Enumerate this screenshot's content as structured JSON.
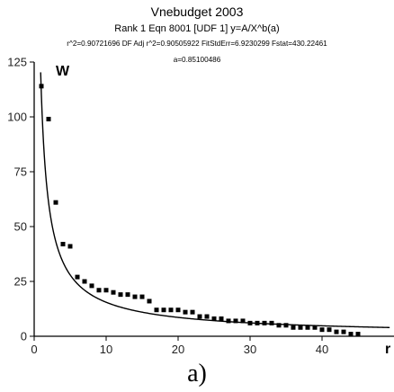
{
  "header": {
    "title": "Vnebudget 2003",
    "subtitle": "Rank 1  Eqn 8001  [UDF 1] y=A/X^b(a)",
    "stats": "r^2=0.90721696  DF Adj r^2=0.90505922  FitStdErr=6.9230299  Fstat=430.22461",
    "param": "a=0.85100486"
  },
  "panel_label": "a)",
  "chart_data": {
    "type": "scatter",
    "title": "Vnebudget 2003",
    "xlabel": "r",
    "ylabel": "W",
    "xlim": [
      0,
      50
    ],
    "ylim": [
      0,
      125
    ],
    "xticks": [
      0,
      10,
      20,
      30,
      40
    ],
    "yticks": [
      0,
      25,
      50,
      75,
      100,
      125
    ],
    "grid": false,
    "fit": {
      "equation": "y=A/X^b(a)",
      "a": 0.85100486,
      "A": 110
    },
    "series": [
      {
        "type": "scatter",
        "x": [
          1,
          2,
          3,
          4,
          5,
          6,
          7,
          8,
          9,
          10,
          11,
          12,
          13,
          14,
          15,
          16,
          17,
          18,
          19,
          20,
          21,
          22,
          23,
          24,
          25,
          26,
          27,
          28,
          29,
          30,
          31,
          32,
          33,
          34,
          35,
          36,
          37,
          38,
          39,
          40,
          41,
          42,
          43,
          44,
          45
        ],
        "y": [
          114,
          99,
          61,
          42,
          41,
          27,
          25,
          23,
          21,
          21,
          20,
          19,
          19,
          18,
          18,
          16,
          12,
          12,
          12,
          12,
          11,
          11,
          9,
          9,
          8,
          8,
          7,
          7,
          7,
          6,
          6,
          6,
          6,
          5,
          5,
          4,
          4,
          4,
          4,
          3,
          3,
          2,
          2,
          1,
          1
        ]
      }
    ]
  }
}
